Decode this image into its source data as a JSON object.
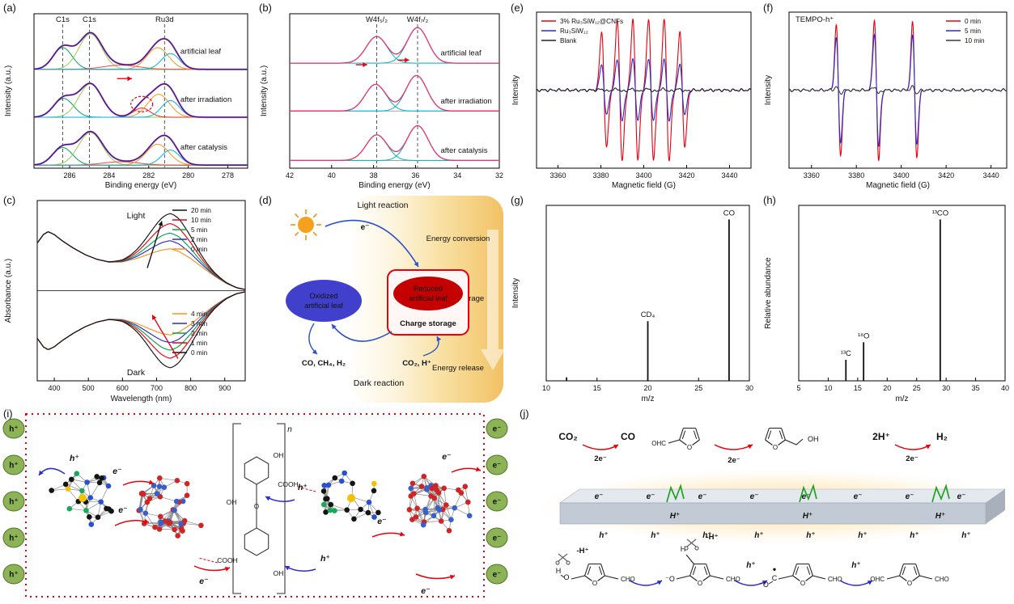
{
  "tags": {
    "a": "(a)",
    "b": "(b)",
    "c": "(c)",
    "d": "(d)",
    "e": "(e)",
    "f": "(f)",
    "g": "(g)",
    "h": "(h)",
    "i": "(i)",
    "j": "(j)"
  },
  "chart_data": [
    {
      "id": "a",
      "type": "line",
      "subtype": "xps",
      "xlabel": "Binding energy (eV)",
      "ylabel": "Intensity (a.u.)",
      "x_range": [
        287.8,
        277.0
      ],
      "xticks": [
        286,
        284,
        282,
        280,
        278
      ],
      "guides": [
        {
          "x": 286.35,
          "label": "C1s"
        },
        {
          "x": 285.0,
          "label": "C1s"
        },
        {
          "x": 281.2,
          "label": "Ru3d"
        }
      ],
      "envelope_color": "#23208f",
      "data_color": "#e83e9c",
      "baseline_color": "#9a9a9a",
      "traces": [
        {
          "label": "artificial leaf",
          "base": 0.64,
          "scale": 0.27,
          "label_x": 280.4,
          "label_dy": 0.1,
          "components": [
            {
              "c": 286.35,
              "w": 0.48,
              "a": 0.52,
              "color": "#00a651"
            },
            {
              "c": 284.95,
              "w": 0.58,
              "a": 0.85,
              "color": "#92d050"
            },
            {
              "c": 283.4,
              "w": 0.9,
              "a": 0.1,
              "color": "#ff4040"
            },
            {
              "c": 281.55,
              "w": 0.55,
              "a": 0.52,
              "color": "#f7941d"
            },
            {
              "c": 280.9,
              "w": 0.45,
              "a": 0.38,
              "color": "#00aeef"
            }
          ]
        },
        {
          "label": "after irradiation",
          "base": 0.33,
          "scale": 0.27,
          "label_x": 280.4,
          "label_dy": 0.1,
          "components": [
            {
              "c": 286.3,
              "w": 0.5,
              "a": 0.45,
              "color": "#00a651"
            },
            {
              "c": 284.95,
              "w": 0.58,
              "a": 0.8,
              "color": "#92d050"
            },
            {
              "c": 282.35,
              "w": 0.42,
              "a": 0.22,
              "color": "#ff2020"
            },
            {
              "c": 281.5,
              "w": 0.55,
              "a": 0.55,
              "color": "#f7941d"
            },
            {
              "c": 280.9,
              "w": 0.45,
              "a": 0.4,
              "color": "#00aeef"
            }
          ],
          "ann": [
            {
              "t": "arrow",
              "x1": 283.6,
              "y1": 0.25,
              "x2": 282.85,
              "y2": 0.25,
              "color": "#e8000d"
            },
            {
              "t": "ellipse",
              "x": 282.35,
              "y": 0.085,
              "rx": 0.55,
              "ry": 0.05,
              "color": "#e8000d"
            }
          ]
        },
        {
          "label": "after catalysis",
          "base": 0.02,
          "scale": 0.27,
          "label_x": 280.4,
          "label_dy": 0.1,
          "components": [
            {
              "c": 286.35,
              "w": 0.5,
              "a": 0.42,
              "color": "#00a651"
            },
            {
              "c": 284.95,
              "w": 0.6,
              "a": 0.78,
              "color": "#92d050"
            },
            {
              "c": 283.4,
              "w": 0.9,
              "a": 0.08,
              "color": "#ff4040"
            },
            {
              "c": 281.55,
              "w": 0.58,
              "a": 0.5,
              "color": "#f7941d"
            },
            {
              "c": 280.9,
              "w": 0.46,
              "a": 0.36,
              "color": "#00aeef"
            }
          ]
        }
      ]
    },
    {
      "id": "b",
      "type": "line",
      "subtype": "xps",
      "xlabel": "Binding energy (eV)",
      "ylabel": "Intensity (a.u.)",
      "x_range": [
        42,
        32
      ],
      "xticks": [
        42,
        40,
        38,
        36,
        34,
        32
      ],
      "guides": [
        {
          "x": 37.85,
          "label": "W4f₅/₂"
        },
        {
          "x": 35.9,
          "label": "W4f₇/₂"
        }
      ],
      "envelope_color": "#e8336d",
      "data_color": null,
      "baseline_color": "#9a9a9a",
      "traces": [
        {
          "label": "artificial leaf",
          "base": 0.68,
          "scale": 0.23,
          "label_x": 34.8,
          "label_dy": 0.05,
          "components": [
            {
              "c": 37.85,
              "w": 0.5,
              "a": 0.75,
              "color": "#00b5c8"
            },
            {
              "c": 35.9,
              "w": 0.5,
              "a": 1.0,
              "color": "#00b5c8"
            }
          ]
        },
        {
          "label": "after irradiation",
          "base": 0.37,
          "scale": 0.23,
          "label_x": 34.8,
          "label_dy": 0.05,
          "components": [
            {
              "c": 37.9,
              "w": 0.5,
              "a": 0.75,
              "color": "#00b5c8"
            },
            {
              "c": 35.95,
              "w": 0.5,
              "a": 1.0,
              "color": "#00b5c8"
            }
          ],
          "ann": [
            {
              "t": "arrow",
              "x1": 38.85,
              "y1": 0.3,
              "x2": 38.3,
              "y2": 0.3,
              "color": "#e8000d"
            },
            {
              "t": "arrow",
              "x1": 36.85,
              "y1": 0.33,
              "x2": 36.3,
              "y2": 0.33,
              "color": "#e8000d"
            }
          ]
        },
        {
          "label": "after catalysis",
          "base": 0.05,
          "scale": 0.23,
          "label_x": 34.8,
          "label_dy": 0.05,
          "components": [
            {
              "c": 37.85,
              "w": 0.5,
              "a": 0.72,
              "color": "#00b5c8"
            },
            {
              "c": 35.9,
              "w": 0.5,
              "a": 0.98,
              "color": "#00b5c8"
            }
          ]
        }
      ]
    },
    {
      "id": "c",
      "type": "line",
      "subtype": "uvvis",
      "xlabel": "Wavelength (nm)",
      "ylabel": "Absorbance (a.u.)",
      "x_range": [
        350,
        960
      ],
      "xticks": [
        400,
        500,
        600,
        700,
        800,
        900
      ],
      "base_curve": [
        [
          350,
          0.5
        ],
        [
          368,
          0.59
        ],
        [
          382,
          0.62
        ],
        [
          400,
          0.59
        ],
        [
          425,
          0.52
        ],
        [
          455,
          0.45
        ],
        [
          490,
          0.38
        ],
        [
          525,
          0.33
        ],
        [
          560,
          0.3
        ],
        [
          600,
          0.3
        ],
        [
          640,
          0.33
        ],
        [
          680,
          0.37
        ],
        [
          715,
          0.4
        ],
        [
          740,
          0.41
        ],
        [
          765,
          0.385
        ],
        [
          800,
          0.32
        ],
        [
          835,
          0.235
        ],
        [
          870,
          0.15
        ],
        [
          905,
          0.075
        ],
        [
          935,
          0.03
        ],
        [
          960,
          0.012
        ]
      ],
      "peak_center": 742,
      "peak_width": 60,
      "upper": {
        "label": "Light",
        "series": [
          {
            "label": "20 min",
            "color": "#111111",
            "amp": 0.4
          },
          {
            "label": "10 min",
            "color": "#e8000d",
            "amp": 0.295
          },
          {
            "label": "5 min",
            "color": "#00a651",
            "amp": 0.195
          },
          {
            "label": "2 min",
            "color": "#2b2bd0",
            "amp": 0.115
          },
          {
            "label": "0 min",
            "color": "#f7941d",
            "amp": 0.03
          }
        ]
      },
      "lower": {
        "label": "Dark",
        "series": [
          {
            "label": "4 min",
            "color": "#f7941d",
            "amp": 0.055
          },
          {
            "label": "3 min",
            "color": "#2b2bd0",
            "amp": 0.135
          },
          {
            "label": "2 min",
            "color": "#00a651",
            "amp": 0.215
          },
          {
            "label": "1 min",
            "color": "#e8000d",
            "amp": 0.3
          },
          {
            "label": "0 min",
            "color": "#111111",
            "amp": 0.4
          }
        ]
      }
    },
    {
      "id": "e",
      "type": "line",
      "subtype": "epr",
      "xlabel": "Magnetic field (G)",
      "ylabel": "Intensity",
      "x_range": [
        3350,
        3450
      ],
      "xticks": [
        3360,
        3380,
        3400,
        3420,
        3440
      ],
      "line_centers": [
        3381.5,
        3388.8,
        3396.1,
        3403.4,
        3410.7,
        3418.0
      ],
      "line_factors": [
        0.82,
        1,
        1,
        1,
        1,
        0.82
      ],
      "line_width": 1.15,
      "legend_pos": "tl",
      "series": [
        {
          "label": "3% Ru₃SiW₁₂@CNFs",
          "color": "#e8000d",
          "amp": 1.0
        },
        {
          "label": "Ru₃SiW₁₂",
          "color": "#2b2bd0",
          "amp": 0.44
        },
        {
          "label": "Blank",
          "color": "#222222",
          "amp": 0.02
        }
      ]
    },
    {
      "id": "f",
      "type": "line",
      "subtype": "epr",
      "xlabel": "Magnetic field (G)",
      "ylabel": "Intensity",
      "x_range": [
        3350,
        3447
      ],
      "xticks": [
        3360,
        3380,
        3400,
        3420,
        3440
      ],
      "corner_label": "TEMPO-h⁺",
      "line_centers": [
        3372,
        3389,
        3406
      ],
      "line_factors": [
        0.92,
        1,
        0.95
      ],
      "line_width": 0.95,
      "legend_pos": "tr",
      "series": [
        {
          "label": "0 min",
          "color": "#e8000d",
          "amp": 1.0
        },
        {
          "label": "5 min",
          "color": "#2b2bd0",
          "amp": 0.8
        },
        {
          "label": "10 min",
          "color": "#3a3a3a",
          "amp": 0.05
        }
      ]
    },
    {
      "id": "g",
      "type": "bar",
      "subtype": "ms",
      "xlabel": "m/z",
      "ylabel": "Intensity",
      "x_range": [
        10,
        30
      ],
      "xticks": [
        10,
        15,
        20,
        25,
        30
      ],
      "peaks": [
        {
          "x": 12,
          "h": 0.02,
          "label": ""
        },
        {
          "x": 20,
          "h": 0.34,
          "label": "CD₄"
        },
        {
          "x": 28,
          "h": 0.92,
          "label": "CO"
        }
      ]
    },
    {
      "id": "h",
      "type": "bar",
      "subtype": "ms",
      "xlabel": "m/z",
      "ylabel": "Relative abundance",
      "x_range": [
        5,
        40
      ],
      "xticks": [
        5,
        10,
        15,
        20,
        25,
        30,
        35,
        40
      ],
      "peaks": [
        {
          "x": 13,
          "h": 0.12,
          "label": "¹³C"
        },
        {
          "x": 16,
          "h": 0.22,
          "label": "¹⁸O"
        },
        {
          "x": 29,
          "h": 0.92,
          "label": "¹³CO"
        }
      ]
    }
  ],
  "diagrams": {
    "d": {
      "light_reaction": "Light reaction",
      "dark_reaction": "Dark reaction",
      "electron": "e⁻",
      "oxidized_line1": "Oxidized",
      "oxidized_line2": "artificial leaf",
      "reduced_line1": "Reduced",
      "reduced_line2": "artificial leaf",
      "charge_storage": "Charge storage",
      "products": "CO, CH₄, H₂",
      "reactants": "CO₂, H⁺",
      "energy": [
        "Energy conversion",
        "Energy storage",
        "Energy release"
      ],
      "colors": {
        "oxidized": "#4040cc",
        "reduced": "#c40000",
        "box_stroke": "#e8000d",
        "arrow": "#2d50c8",
        "products": "#cc2200",
        "reactants": "#2b2bd0"
      }
    },
    "i": {
      "hole": "h⁺",
      "electron": "e⁻",
      "hole_count": 5,
      "electron_count": 5,
      "oh": "OH",
      "cooh": "COOH",
      "n": "n",
      "o": "O",
      "colors": {
        "circle_fill": "#8cb356",
        "circle_stroke": "#55732c",
        "e_arrow": "#e8000d",
        "h_arrow": "#2b2bd0",
        "border": "#e8000d"
      }
    },
    "j": {
      "co2": "CO₂",
      "co": "CO",
      "two_e": "2e⁻",
      "two_h": "2H⁺",
      "h2": "H₂",
      "oh": "OH",
      "ohc": "OHC",
      "cho": "CHO",
      "o": "O",
      "electron": "e⁻",
      "hole": "h⁺",
      "proton": "H⁺",
      "minus_h": "-H⁺",
      "h_label": "H",
      "o_label": "O",
      "o_minus": "⁻O",
      "radical_c": "C",
      "radical_dot": "•",
      "colors": {
        "co": "#e8000d",
        "h2": "#18a818",
        "e": "#e8000d",
        "h": "#2b2bd0",
        "arrow_red": "#e8000d",
        "arrow_blue": "#2b2bd0",
        "green": "#21a121"
      }
    }
  }
}
